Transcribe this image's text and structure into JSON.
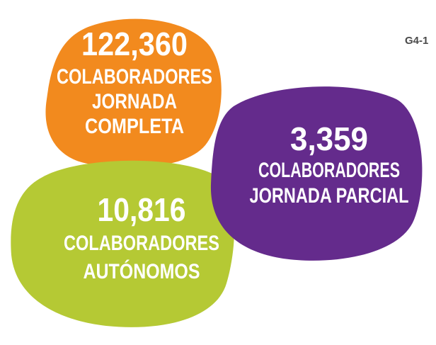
{
  "label": "G4-1",
  "bubbles": [
    {
      "number": "122,360",
      "lines": [
        "COLABORADORES",
        "JORNADA",
        "COMPLETA"
      ]
    },
    {
      "number": "10,816",
      "lines": [
        "COLABORADORES",
        "AUTÓNOMOS"
      ]
    },
    {
      "number": "3,359",
      "lines": [
        "COLABORADORES",
        "JORNADA PARCIAL"
      ]
    }
  ]
}
